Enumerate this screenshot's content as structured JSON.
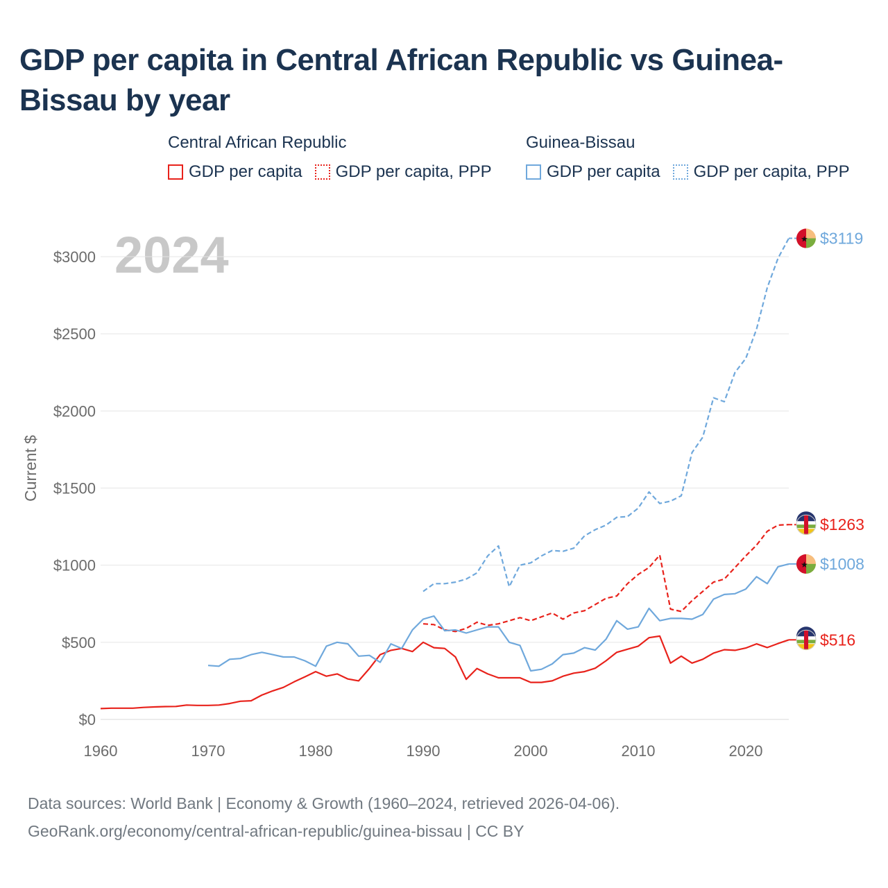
{
  "title": "GDP per capita in Central African Republic vs Guinea-Bissau by year",
  "legend": {
    "car": {
      "title": "Central African Republic",
      "items": [
        "GDP per capita",
        "GDP per capita, PPP"
      ]
    },
    "gnb": {
      "title": "Guinea-Bissau",
      "items": [
        "GDP per capita",
        "GDP per capita, PPP"
      ]
    }
  },
  "footer": {
    "line1": "Data sources: World Bank | Economy & Growth (1960–2024, retrieved 2026-04-06).",
    "line2": "GeoRank.org/economy/central-african-republic/guinea-bissau | CC BY"
  },
  "colors": {
    "car": "#e8221b",
    "gnb": "#6fa8dc",
    "title": "#1b3350",
    "axis": "#6b6b6b",
    "grid": "#e5e5e5",
    "watermark": "#c8c8c8"
  },
  "chart_data": {
    "type": "line",
    "year_label": "2024",
    "ylabel": "Current $",
    "xlim": [
      1960,
      2024
    ],
    "ylim": [
      0,
      3250
    ],
    "x_ticks": [
      1960,
      1970,
      1980,
      1990,
      2000,
      2010,
      2020
    ],
    "y_ticks": [
      0,
      500,
      1000,
      1500,
      2000,
      2500,
      3000
    ],
    "y_tick_labels": [
      "$0",
      "$500",
      "$1000",
      "$1500",
      "$2000",
      "$2500",
      "$3000"
    ],
    "series": [
      {
        "name": "Central African Republic GDP per capita",
        "country": "car",
        "style": "solid",
        "end_label": "$516",
        "start_year": 1960,
        "values": [
          70,
          73,
          73,
          73,
          78,
          81,
          83,
          84,
          93,
          91,
          91,
          93,
          103,
          118,
          121,
          158,
          185,
          208,
          244,
          276,
          310,
          280,
          295,
          262,
          250,
          330,
          420,
          448,
          460,
          440,
          500,
          465,
          460,
          405,
          260,
          330,
          295,
          270,
          270,
          270,
          240,
          240,
          250,
          280,
          300,
          310,
          332,
          380,
          435,
          455,
          475,
          530,
          540,
          365,
          410,
          365,
          390,
          430,
          452,
          448,
          463,
          490,
          466,
          492,
          516
        ]
      },
      {
        "name": "Central African Republic GDP per capita, PPP",
        "country": "car",
        "style": "dash",
        "end_label": "$1263",
        "start_year": 1990,
        "values": [
          620,
          615,
          580,
          570,
          590,
          630,
          610,
          620,
          640,
          660,
          640,
          665,
          690,
          650,
          690,
          705,
          745,
          785,
          800,
          880,
          940,
          985,
          1065,
          715,
          700,
          770,
          830,
          890,
          910,
          985,
          1060,
          1130,
          1220,
          1260,
          1263
        ]
      },
      {
        "name": "Guinea-Bissau GDP per capita",
        "country": "gnb",
        "style": "solid",
        "end_label": "$1008",
        "start_year": 1970,
        "values": [
          350,
          345,
          390,
          395,
          420,
          435,
          420,
          405,
          405,
          380,
          345,
          475,
          500,
          490,
          410,
          415,
          370,
          490,
          460,
          580,
          650,
          670,
          575,
          580,
          560,
          580,
          600,
          600,
          500,
          480,
          315,
          325,
          360,
          420,
          430,
          465,
          450,
          520,
          640,
          585,
          600,
          720,
          640,
          655,
          655,
          650,
          680,
          780,
          810,
          815,
          845,
          925,
          880,
          990,
          1008
        ]
      },
      {
        "name": "Guinea-Bissau GDP per capita, PPP",
        "country": "gnb",
        "style": "dash",
        "end_label": "$3119",
        "start_year": 1990,
        "values": [
          830,
          880,
          880,
          890,
          910,
          950,
          1060,
          1125,
          860,
          1000,
          1015,
          1060,
          1095,
          1090,
          1110,
          1190,
          1230,
          1260,
          1310,
          1315,
          1370,
          1475,
          1400,
          1415,
          1450,
          1730,
          1830,
          2085,
          2060,
          2250,
          2340,
          2530,
          2800,
          2990,
          3119
        ]
      }
    ]
  }
}
